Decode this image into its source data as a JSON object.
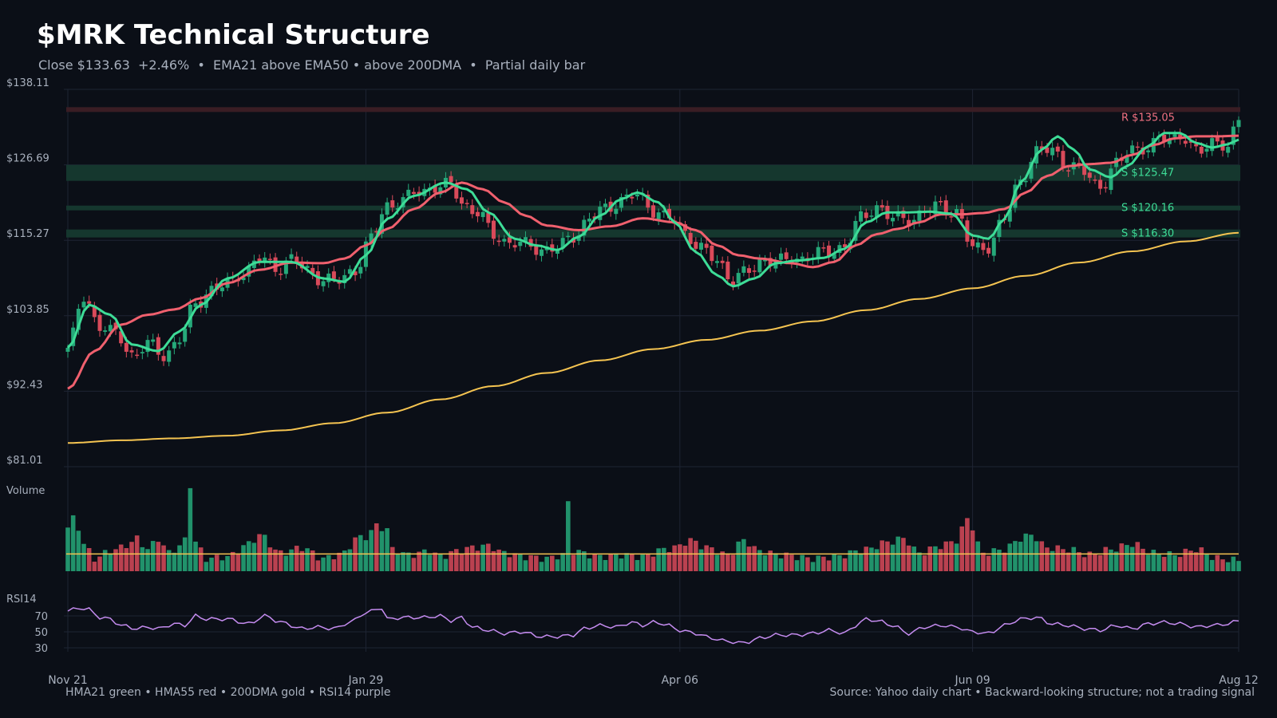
{
  "chart_data": {
    "type": "candlestick",
    "title": "$MRK Technical Structure",
    "subtitle": "Close $133.63  +2.46%  •  EMA21 above EMA50 • above 200DMA  •  Partial daily bar",
    "price_axis": {
      "ylim": [
        81.01,
        138.11
      ],
      "ticks": [
        "$138.11",
        "$126.69",
        "$115.27",
        "$103.85",
        "$92.43",
        "$81.01"
      ]
    },
    "x_ticks": [
      "Nov 21",
      "Jan 29",
      "Apr 06",
      "Jun 09",
      "Aug 12"
    ],
    "levels": [
      {
        "label": "R $135.05",
        "kind": "resistance",
        "value": 135.05
      },
      {
        "label": "S $125.47",
        "kind": "support",
        "value": 125.47
      },
      {
        "label": "S $120.16",
        "kind": "support",
        "value": 120.16
      },
      {
        "label": "S $116.30",
        "kind": "support",
        "value": 116.3
      }
    ],
    "close_anchors": [
      [
        0,
        99.0
      ],
      [
        3,
        106.5
      ],
      [
        6,
        102.5
      ],
      [
        9,
        101.0
      ],
      [
        12,
        98.0
      ],
      [
        15,
        99.5
      ],
      [
        18,
        97.8
      ],
      [
        21,
        100.5
      ],
      [
        24,
        105.5
      ],
      [
        27,
        108.0
      ],
      [
        30,
        108.5
      ],
      [
        33,
        110.5
      ],
      [
        36,
        112.5
      ],
      [
        39,
        111.0
      ],
      [
        42,
        112.5
      ],
      [
        45,
        110.5
      ],
      [
        48,
        109.5
      ],
      [
        51,
        109.0
      ],
      [
        54,
        111.0
      ],
      [
        57,
        115.5
      ],
      [
        60,
        120.5
      ],
      [
        63,
        121.5
      ],
      [
        66,
        122.5
      ],
      [
        69,
        123.5
      ],
      [
        72,
        123.5
      ],
      [
        74,
        121.0
      ],
      [
        77,
        119.5
      ],
      [
        80,
        116.0
      ],
      [
        83,
        115.0
      ],
      [
        86,
        114.5
      ],
      [
        89,
        114.0
      ],
      [
        92,
        114.0
      ],
      [
        95,
        116.0
      ],
      [
        98,
        118.5
      ],
      [
        101,
        120.0
      ],
      [
        104,
        121.5
      ],
      [
        107,
        122.0
      ],
      [
        110,
        120.0
      ],
      [
        113,
        118.5
      ],
      [
        116,
        116.5
      ],
      [
        119,
        114.0
      ],
      [
        122,
        112.0
      ],
      [
        125,
        109.5
      ],
      [
        128,
        110.5
      ],
      [
        131,
        112.5
      ],
      [
        134,
        112.0
      ],
      [
        137,
        112.5
      ],
      [
        140,
        113.0
      ],
      [
        143,
        113.5
      ],
      [
        146,
        114.5
      ],
      [
        149,
        118.5
      ],
      [
        152,
        120.5
      ],
      [
        155,
        118.5
      ],
      [
        158,
        118.5
      ],
      [
        161,
        119.5
      ],
      [
        164,
        120.5
      ],
      [
        167,
        119.5
      ],
      [
        170,
        114.0
      ],
      [
        173,
        114.5
      ],
      [
        176,
        118.5
      ],
      [
        179,
        124.5
      ],
      [
        182,
        128.5
      ],
      [
        185,
        129.0
      ],
      [
        188,
        126.5
      ],
      [
        191,
        125.5
      ],
      [
        194,
        123.5
      ],
      [
        197,
        126.5
      ],
      [
        200,
        129.5
      ],
      [
        203,
        129.0
      ],
      [
        206,
        131.0
      ],
      [
        209,
        131.0
      ],
      [
        212,
        128.5
      ],
      [
        215,
        130.5
      ],
      [
        218,
        129.0
      ],
      [
        220,
        133.63
      ]
    ],
    "hma21_anchors": [
      [
        0,
        99.0
      ],
      [
        4,
        105.5
      ],
      [
        8,
        104.0
      ],
      [
        12,
        99.5
      ],
      [
        17,
        98.5
      ],
      [
        21,
        101.5
      ],
      [
        25,
        105.5
      ],
      [
        30,
        109.5
      ],
      [
        36,
        112.0
      ],
      [
        42,
        112.0
      ],
      [
        48,
        109.5
      ],
      [
        52,
        109.0
      ],
      [
        56,
        113.0
      ],
      [
        60,
        118.5
      ],
      [
        65,
        122.0
      ],
      [
        71,
        124.0
      ],
      [
        75,
        123.0
      ],
      [
        79,
        119.5
      ],
      [
        84,
        115.5
      ],
      [
        88,
        114.5
      ],
      [
        92,
        113.8
      ],
      [
        96,
        115.8
      ],
      [
        100,
        119.0
      ],
      [
        104,
        121.5
      ],
      [
        107,
        122.5
      ],
      [
        111,
        121.0
      ],
      [
        114,
        118.0
      ],
      [
        118,
        113.5
      ],
      [
        122,
        110.0
      ],
      [
        125,
        108.3
      ],
      [
        129,
        109.5
      ],
      [
        133,
        111.8
      ],
      [
        137,
        112.2
      ],
      [
        142,
        112.6
      ],
      [
        146,
        114.0
      ],
      [
        150,
        118.0
      ],
      [
        154,
        119.5
      ],
      [
        158,
        119.5
      ],
      [
        162,
        119.6
      ],
      [
        166,
        119.3
      ],
      [
        170,
        116.0
      ],
      [
        173,
        115.5
      ],
      [
        176,
        118.5
      ],
      [
        179,
        124.0
      ],
      [
        183,
        129.0
      ],
      [
        186,
        131.0
      ],
      [
        189,
        129.0
      ],
      [
        192,
        126.0
      ],
      [
        196,
        124.8
      ],
      [
        199,
        126.5
      ],
      [
        203,
        129.5
      ],
      [
        206,
        131.5
      ],
      [
        209,
        131.5
      ],
      [
        212,
        130.0
      ],
      [
        215,
        129.3
      ],
      [
        218,
        129.8
      ],
      [
        220,
        130.5
      ]
    ],
    "hma55_anchors": [
      [
        0,
        92.8
      ],
      [
        5,
        98.5
      ],
      [
        10,
        102.5
      ],
      [
        15,
        104.0
      ],
      [
        20,
        104.8
      ],
      [
        25,
        106.5
      ],
      [
        30,
        108.8
      ],
      [
        36,
        110.8
      ],
      [
        42,
        111.9
      ],
      [
        48,
        111.8
      ],
      [
        52,
        112.5
      ],
      [
        56,
        114.5
      ],
      [
        60,
        117.0
      ],
      [
        65,
        120.0
      ],
      [
        70,
        122.5
      ],
      [
        74,
        124.0
      ],
      [
        78,
        123.0
      ],
      [
        82,
        121.0
      ],
      [
        86,
        119.0
      ],
      [
        90,
        117.5
      ],
      [
        96,
        116.8
      ],
      [
        102,
        117.4
      ],
      [
        108,
        118.6
      ],
      [
        114,
        118.0
      ],
      [
        118,
        116.8
      ],
      [
        122,
        114.5
      ],
      [
        126,
        113.0
      ],
      [
        130,
        112.5
      ],
      [
        136,
        111.8
      ],
      [
        140,
        111.2
      ],
      [
        144,
        112.0
      ],
      [
        148,
        114.5
      ],
      [
        152,
        116.2
      ],
      [
        156,
        117.0
      ],
      [
        160,
        118.0
      ],
      [
        164,
        119.2
      ],
      [
        168,
        119.2
      ],
      [
        172,
        119.4
      ],
      [
        176,
        120.0
      ],
      [
        180,
        122.5
      ],
      [
        184,
        125.0
      ],
      [
        188,
        126.5
      ],
      [
        192,
        126.8
      ],
      [
        196,
        127.0
      ],
      [
        200,
        128.2
      ],
      [
        204,
        129.7
      ],
      [
        208,
        130.7
      ],
      [
        212,
        131.0
      ],
      [
        216,
        131.0
      ],
      [
        220,
        131.1
      ]
    ],
    "dma200_anchors": [
      [
        0,
        84.6
      ],
      [
        10,
        85.0
      ],
      [
        20,
        85.3
      ],
      [
        30,
        85.7
      ],
      [
        40,
        86.5
      ],
      [
        50,
        87.6
      ],
      [
        60,
        89.2
      ],
      [
        70,
        91.2
      ],
      [
        80,
        93.2
      ],
      [
        90,
        95.2
      ],
      [
        100,
        97.1
      ],
      [
        110,
        98.8
      ],
      [
        120,
        100.2
      ],
      [
        130,
        101.6
      ],
      [
        140,
        103.0
      ],
      [
        150,
        104.7
      ],
      [
        160,
        106.4
      ],
      [
        170,
        108.0
      ],
      [
        180,
        109.9
      ],
      [
        190,
        111.9
      ],
      [
        200,
        113.6
      ],
      [
        210,
        115.1
      ],
      [
        220,
        116.4
      ]
    ],
    "volume": {
      "label": "Volume",
      "anchors": [
        [
          0,
          0.48
        ],
        [
          1,
          0.58
        ],
        [
          2,
          0.48
        ],
        [
          3,
          0.3
        ],
        [
          5,
          0.14
        ],
        [
          8,
          0.22
        ],
        [
          10,
          0.26
        ],
        [
          12,
          0.32
        ],
        [
          13,
          0.36
        ],
        [
          15,
          0.24
        ],
        [
          17,
          0.36
        ],
        [
          19,
          0.2
        ],
        [
          21,
          0.28
        ],
        [
          22,
          0.34
        ],
        [
          23,
          0.95
        ],
        [
          24,
          0.32
        ],
        [
          26,
          0.14
        ],
        [
          30,
          0.16
        ],
        [
          34,
          0.3
        ],
        [
          36,
          0.4
        ],
        [
          40,
          0.2
        ],
        [
          44,
          0.26
        ],
        [
          48,
          0.14
        ],
        [
          52,
          0.2
        ],
        [
          54,
          0.36
        ],
        [
          56,
          0.38
        ],
        [
          58,
          0.5
        ],
        [
          60,
          0.46
        ],
        [
          61,
          0.24
        ],
        [
          64,
          0.18
        ],
        [
          68,
          0.22
        ],
        [
          70,
          0.16
        ],
        [
          73,
          0.22
        ],
        [
          76,
          0.26
        ],
        [
          79,
          0.28
        ],
        [
          82,
          0.2
        ],
        [
          86,
          0.16
        ],
        [
          90,
          0.14
        ],
        [
          93,
          0.18
        ],
        [
          94,
          0.75
        ],
        [
          95,
          0.22
        ],
        [
          100,
          0.16
        ],
        [
          104,
          0.18
        ],
        [
          108,
          0.16
        ],
        [
          112,
          0.24
        ],
        [
          114,
          0.26
        ],
        [
          117,
          0.34
        ],
        [
          120,
          0.26
        ],
        [
          124,
          0.18
        ],
        [
          127,
          0.34
        ],
        [
          130,
          0.22
        ],
        [
          134,
          0.18
        ],
        [
          140,
          0.14
        ],
        [
          144,
          0.16
        ],
        [
          150,
          0.24
        ],
        [
          154,
          0.32
        ],
        [
          157,
          0.36
        ],
        [
          160,
          0.2
        ],
        [
          164,
          0.28
        ],
        [
          167,
          0.34
        ],
        [
          169,
          0.58
        ],
        [
          172,
          0.2
        ],
        [
          176,
          0.24
        ],
        [
          179,
          0.36
        ],
        [
          181,
          0.4
        ],
        [
          184,
          0.26
        ],
        [
          188,
          0.24
        ],
        [
          192,
          0.18
        ],
        [
          196,
          0.24
        ],
        [
          200,
          0.3
        ],
        [
          204,
          0.2
        ],
        [
          208,
          0.18
        ],
        [
          212,
          0.24
        ],
        [
          216,
          0.14
        ],
        [
          220,
          0.12
        ]
      ],
      "average_level": 0.19
    },
    "rsi14": {
      "label": "RSI14",
      "ticks": [
        "70",
        "50",
        "30"
      ],
      "tick_values": [
        70,
        50,
        30
      ],
      "anchors": [
        [
          0,
          76
        ],
        [
          2,
          80
        ],
        [
          4,
          78
        ],
        [
          6,
          68
        ],
        [
          8,
          66
        ],
        [
          10,
          58
        ],
        [
          13,
          54
        ],
        [
          15,
          56
        ],
        [
          17,
          54
        ],
        [
          20,
          60
        ],
        [
          22,
          58
        ],
        [
          24,
          70
        ],
        [
          26,
          66
        ],
        [
          30,
          66
        ],
        [
          34,
          60
        ],
        [
          37,
          70
        ],
        [
          40,
          62
        ],
        [
          44,
          54
        ],
        [
          47,
          56
        ],
        [
          50,
          54
        ],
        [
          53,
          62
        ],
        [
          56,
          74
        ],
        [
          59,
          80
        ],
        [
          60,
          66
        ],
        [
          63,
          68
        ],
        [
          67,
          68
        ],
        [
          70,
          70
        ],
        [
          72,
          64
        ],
        [
          74,
          68
        ],
        [
          76,
          56
        ],
        [
          79,
          52
        ],
        [
          82,
          48
        ],
        [
          85,
          50
        ],
        [
          89,
          44
        ],
        [
          92,
          44
        ],
        [
          95,
          46
        ],
        [
          97,
          54
        ],
        [
          100,
          58
        ],
        [
          103,
          56
        ],
        [
          106,
          62
        ],
        [
          108,
          58
        ],
        [
          110,
          62
        ],
        [
          112,
          60
        ],
        [
          115,
          52
        ],
        [
          118,
          48
        ],
        [
          121,
          42
        ],
        [
          124,
          38
        ],
        [
          127,
          36
        ],
        [
          130,
          42
        ],
        [
          133,
          46
        ],
        [
          137,
          46
        ],
        [
          140,
          48
        ],
        [
          143,
          52
        ],
        [
          146,
          48
        ],
        [
          148,
          58
        ],
        [
          150,
          66
        ],
        [
          152,
          64
        ],
        [
          155,
          58
        ],
        [
          158,
          48
        ],
        [
          161,
          56
        ],
        [
          164,
          58
        ],
        [
          167,
          56
        ],
        [
          170,
          50
        ],
        [
          173,
          48
        ],
        [
          176,
          58
        ],
        [
          179,
          66
        ],
        [
          182,
          68
        ],
        [
          185,
          60
        ],
        [
          188,
          58
        ],
        [
          191,
          54
        ],
        [
          194,
          52
        ],
        [
          197,
          58
        ],
        [
          200,
          54
        ],
        [
          203,
          60
        ],
        [
          206,
          62
        ],
        [
          209,
          60
        ],
        [
          212,
          56
        ],
        [
          215,
          58
        ],
        [
          218,
          60
        ],
        [
          220,
          64
        ]
      ]
    },
    "footer_left": "HMA21 green • HMA55 red • 200DMA gold  •  RSI14 purple",
    "footer_right": "Source: Yahoo daily chart • Backward-looking structure; not a trading signal",
    "colors": {
      "background": "#0b0f17",
      "up": "#26a97a",
      "down": "#d94a5a",
      "hma21": "#3ddc97",
      "hma55": "#f0606e",
      "dma200": "#f5c451",
      "rsi": "#c58cf0",
      "resistance_band": "#3a1d24",
      "support_band": "#15372e",
      "resistance_text": "#f07080",
      "support_text": "#3ddc97",
      "grid": "#1e2433",
      "axis_text": "#a8b0bd"
    }
  }
}
